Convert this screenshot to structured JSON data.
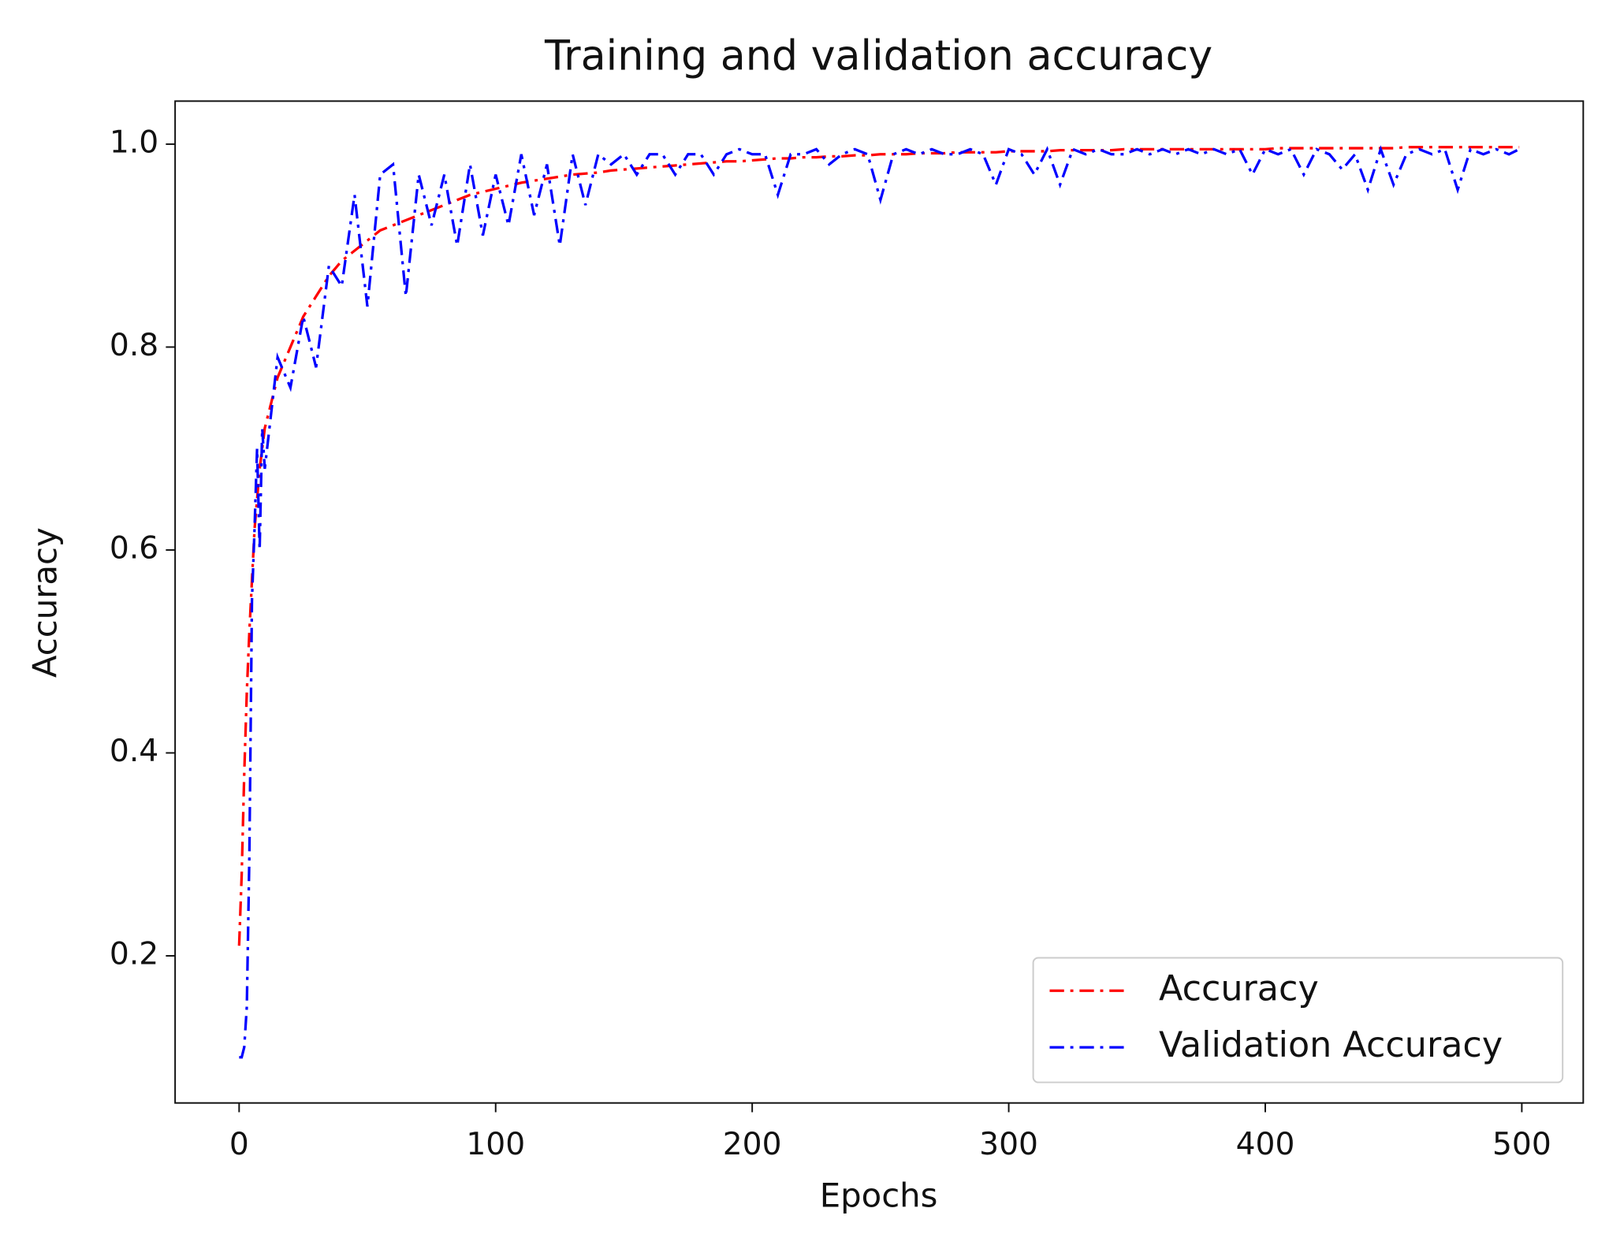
{
  "chart_data": {
    "type": "line",
    "title": "Training and validation accuracy",
    "x_label": "Epochs",
    "y_label": "Accuracy",
    "x": [
      0,
      1,
      2,
      3,
      4,
      5,
      6,
      7,
      8,
      9,
      10,
      15,
      20,
      25,
      30,
      35,
      40,
      45,
      50,
      55,
      60,
      65,
      70,
      75,
      80,
      85,
      90,
      95,
      100,
      105,
      110,
      115,
      120,
      125,
      130,
      135,
      140,
      145,
      150,
      155,
      160,
      165,
      170,
      175,
      180,
      185,
      190,
      195,
      200,
      205,
      210,
      215,
      220,
      225,
      230,
      235,
      240,
      245,
      250,
      255,
      260,
      265,
      270,
      275,
      280,
      285,
      290,
      295,
      300,
      305,
      310,
      315,
      320,
      325,
      330,
      335,
      340,
      345,
      350,
      355,
      360,
      365,
      370,
      375,
      380,
      385,
      390,
      395,
      400,
      405,
      410,
      415,
      420,
      425,
      430,
      435,
      440,
      445,
      450,
      455,
      460,
      465,
      470,
      475,
      480,
      485,
      490,
      495,
      499
    ],
    "series": [
      {
        "name": "Accuracy",
        "color": "#ff0000",
        "linestyle": "dashdot",
        "values": [
          0.21,
          0.28,
          0.38,
          0.46,
          0.52,
          0.57,
          0.62,
          0.65,
          0.68,
          0.7,
          0.72,
          0.77,
          0.8,
          0.83,
          0.85,
          0.87,
          0.885,
          0.895,
          0.905,
          0.915,
          0.92,
          0.925,
          0.93,
          0.935,
          0.94,
          0.945,
          0.95,
          0.953,
          0.956,
          0.959,
          0.962,
          0.964,
          0.966,
          0.968,
          0.97,
          0.971,
          0.972,
          0.974,
          0.975,
          0.976,
          0.977,
          0.978,
          0.979,
          0.98,
          0.981,
          0.982,
          0.983,
          0.983,
          0.984,
          0.985,
          0.986,
          0.986,
          0.987,
          0.987,
          0.988,
          0.988,
          0.989,
          0.989,
          0.99,
          0.99,
          0.99,
          0.991,
          0.991,
          0.991,
          0.992,
          0.992,
          0.992,
          0.992,
          0.993,
          0.993,
          0.993,
          0.993,
          0.994,
          0.994,
          0.994,
          0.994,
          0.994,
          0.995,
          0.995,
          0.995,
          0.995,
          0.995,
          0.995,
          0.995,
          0.995,
          0.995,
          0.995,
          0.995,
          0.995,
          0.996,
          0.996,
          0.996,
          0.996,
          0.996,
          0.996,
          0.996,
          0.996,
          0.996,
          0.996,
          0.997,
          0.997,
          0.997,
          0.997,
          0.997,
          0.997,
          0.997,
          0.997,
          0.997,
          0.997
        ]
      },
      {
        "name": "Validation Accuracy",
        "color": "#0000ff",
        "linestyle": "dashdot",
        "values": [
          0.1,
          0.1,
          0.11,
          0.15,
          0.3,
          0.55,
          0.62,
          0.7,
          0.6,
          0.72,
          0.68,
          0.79,
          0.76,
          0.83,
          0.78,
          0.88,
          0.86,
          0.95,
          0.84,
          0.97,
          0.98,
          0.85,
          0.97,
          0.92,
          0.97,
          0.9,
          0.98,
          0.91,
          0.97,
          0.92,
          0.99,
          0.93,
          0.98,
          0.9,
          0.99,
          0.94,
          0.99,
          0.98,
          0.99,
          0.97,
          0.99,
          0.99,
          0.97,
          0.99,
          0.99,
          0.97,
          0.99,
          0.995,
          0.99,
          0.99,
          0.95,
          0.99,
          0.99,
          0.995,
          0.98,
          0.99,
          0.995,
          0.99,
          0.945,
          0.99,
          0.995,
          0.99,
          0.995,
          0.99,
          0.99,
          0.995,
          0.99,
          0.96,
          0.995,
          0.99,
          0.97,
          0.995,
          0.96,
          0.995,
          0.99,
          0.995,
          0.99,
          0.99,
          0.995,
          0.99,
          0.995,
          0.99,
          0.995,
          0.99,
          0.995,
          0.99,
          0.995,
          0.97,
          0.995,
          0.99,
          0.995,
          0.97,
          0.995,
          0.99,
          0.975,
          0.99,
          0.955,
          0.995,
          0.96,
          0.99,
          0.995,
          0.99,
          0.995,
          0.955,
          0.995,
          0.99,
          0.995,
          0.99,
          0.995
        ]
      }
    ],
    "xlim": [
      -24.95,
      523.95
    ],
    "xticks": [
      0,
      100,
      200,
      300,
      400,
      500
    ],
    "ylim": [
      0.055,
      1.0424
    ],
    "yticks": [
      0.2,
      0.4,
      0.6,
      0.8,
      {
        "value": 1.0,
        "label": "1.0"
      }
    ],
    "grid": false,
    "legend": "lower right"
  }
}
